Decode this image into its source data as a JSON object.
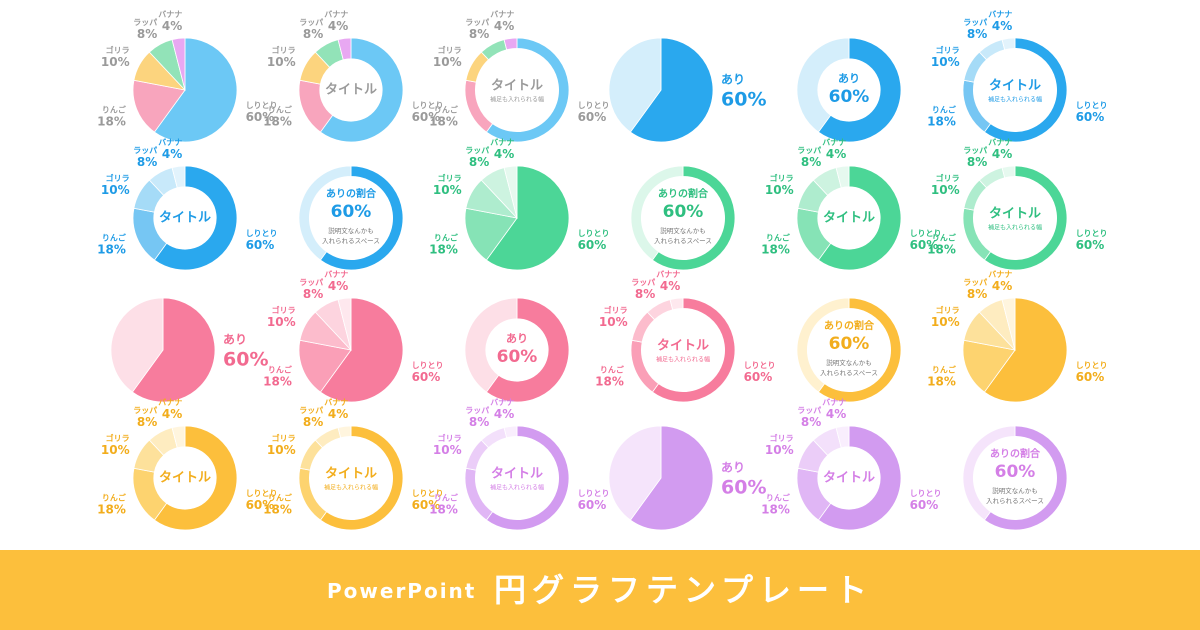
{
  "banner": {
    "latin": "PowerPoint",
    "title": "円グラフテンプレート"
  },
  "chart_data": [
    {
      "type": "pie",
      "categories": [
        "しりとり",
        "りんご",
        "ゴリラ",
        "ラッパ",
        "バナナ"
      ],
      "values": [
        60,
        18,
        10,
        8,
        4
      ],
      "value_labels": [
        "60%",
        "18%",
        "10%",
        "8%",
        "4%"
      ],
      "colors": [
        "#6cc8f5",
        "#f8a5bd",
        "#fcd47e",
        "#92e3b8",
        "#e8a8f2"
      ],
      "label_color": "#9a9a9a"
    },
    {
      "type": "donut",
      "title": "タイトル",
      "categories": [
        "しりとり",
        "りんご",
        "ゴリラ",
        "ラッパ",
        "バナナ"
      ],
      "values": [
        60,
        18,
        10,
        8,
        4
      ],
      "value_labels": [
        "60%",
        "18%",
        "10%",
        "8%",
        "4%"
      ],
      "colors": [
        "#6cc8f5",
        "#f8a5bd",
        "#fcd47e",
        "#92e3b8",
        "#e8a8f2"
      ],
      "label_color": "#9a9a9a"
    },
    {
      "type": "ring",
      "title": "タイトル",
      "subtitle": "補足も入れられる幅",
      "categories": [
        "しりとり",
        "りんご",
        "ゴリラ",
        "ラッパ",
        "バナナ"
      ],
      "values": [
        60,
        18,
        10,
        8,
        4
      ],
      "value_labels": [
        "60%",
        "18%",
        "10%",
        "8%",
        "4%"
      ],
      "colors": [
        "#6cc8f5",
        "#f8a5bd",
        "#fcd47e",
        "#92e3b8",
        "#e8a8f2"
      ],
      "label_color": "#9a9a9a"
    },
    {
      "type": "pie",
      "categories": [
        "あり",
        null
      ],
      "values": [
        60,
        40
      ],
      "value_labels": [
        "60%",
        null
      ],
      "colors": [
        "#2aa8ee",
        "#d4eefb"
      ],
      "label_color": "#1e9be6"
    },
    {
      "type": "donut",
      "categories": [
        "あり",
        null
      ],
      "values": [
        60,
        40
      ],
      "value_labels": [
        "60%",
        null
      ],
      "colors": [
        "#2aa8ee",
        "#d4eefb"
      ],
      "label_color": "#1e9be6"
    },
    {
      "type": "ring",
      "title": "タイトル",
      "subtitle": "補足も入れられる幅",
      "categories": [
        "しりとり",
        "りんご",
        "ゴリラ",
        "ラッパ",
        "バナナ"
      ],
      "values": [
        60,
        18,
        10,
        8,
        4
      ],
      "value_labels": [
        "60%",
        "18%",
        "10%",
        "8%",
        "4%"
      ],
      "colors": [
        "#2aa8ee",
        "#76c6f3",
        "#a5dbf7",
        "#c8e9fa",
        "#e2f3fc"
      ],
      "label_color": "#1e9be6"
    },
    {
      "type": "donut",
      "title": "タイトル",
      "categories": [
        "しりとり",
        "りんご",
        "ゴリラ",
        "ラッパ",
        "バナナ"
      ],
      "values": [
        60,
        18,
        10,
        8,
        4
      ],
      "value_labels": [
        "60%",
        "18%",
        "10%",
        "8%",
        "4%"
      ],
      "colors": [
        "#2aa8ee",
        "#76c6f3",
        "#a5dbf7",
        "#c8e9fa",
        "#e2f3fc"
      ],
      "label_color": "#1e9be6"
    },
    {
      "type": "ring",
      "categories": [
        "ありの割合",
        null
      ],
      "values": [
        60,
        40
      ],
      "value_labels": [
        "60%",
        null
      ],
      "note": [
        "説明文なんかも",
        "入れられるスペース"
      ],
      "colors": [
        "#2aa8ee",
        "#d4eefb"
      ],
      "label_color": "#1e9be6"
    },
    {
      "type": "pie",
      "categories": [
        "しりとり",
        "りんご",
        "ゴリラ",
        "ラッパ",
        "バナナ"
      ],
      "values": [
        60,
        18,
        10,
        8,
        4
      ],
      "value_labels": [
        "60%",
        "18%",
        "10%",
        "8%",
        "4%"
      ],
      "colors": [
        "#4cd697",
        "#86e3b6",
        "#aeecce",
        "#cdf3e0",
        "#e6f9ef"
      ],
      "label_color": "#2fbf80"
    },
    {
      "type": "ring",
      "categories": [
        "ありの割合",
        null
      ],
      "values": [
        60,
        40
      ],
      "value_labels": [
        "60%",
        null
      ],
      "note": [
        "説明文なんかも",
        "入れられるスペース"
      ],
      "colors": [
        "#4cd697",
        "#dcf7ea"
      ],
      "label_color": "#2fbf80"
    },
    {
      "type": "donut",
      "title": "タイトル",
      "categories": [
        "しりとり",
        "りんご",
        "ゴリラ",
        "ラッパ",
        "バナナ"
      ],
      "values": [
        60,
        18,
        10,
        8,
        4
      ],
      "value_labels": [
        "60%",
        "18%",
        "10%",
        "8%",
        "4%"
      ],
      "colors": [
        "#4cd697",
        "#86e3b6",
        "#aeecce",
        "#cdf3e0",
        "#e6f9ef"
      ],
      "label_color": "#2fbf80"
    },
    {
      "type": "ring",
      "title": "タイトル",
      "subtitle": "補足も入れられる幅",
      "categories": [
        "しりとり",
        "りんご",
        "ゴリラ",
        "ラッパ",
        "バナナ"
      ],
      "values": [
        60,
        18,
        10,
        8,
        4
      ],
      "value_labels": [
        "60%",
        "18%",
        "10%",
        "8%",
        "4%"
      ],
      "colors": [
        "#4cd697",
        "#86e3b6",
        "#aeecce",
        "#cdf3e0",
        "#e6f9ef"
      ],
      "label_color": "#2fbf80"
    },
    {
      "type": "pie",
      "categories": [
        "あり",
        null
      ],
      "values": [
        60,
        40
      ],
      "value_labels": [
        "60%",
        null
      ],
      "colors": [
        "#f77c9d",
        "#fddfe7"
      ],
      "label_color": "#f26a90"
    },
    {
      "type": "pie",
      "categories": [
        "しりとり",
        "りんご",
        "ゴリラ",
        "ラッパ",
        "バナナ"
      ],
      "values": [
        60,
        18,
        10,
        8,
        4
      ],
      "value_labels": [
        "60%",
        "18%",
        "10%",
        "8%",
        "4%"
      ],
      "colors": [
        "#f77c9d",
        "#fa9fb7",
        "#fcbccc",
        "#fdd4df",
        "#fee8ee"
      ],
      "label_color": "#f26a90"
    },
    {
      "type": "donut",
      "categories": [
        "あり",
        null
      ],
      "values": [
        60,
        40
      ],
      "value_labels": [
        "60%",
        null
      ],
      "colors": [
        "#f77c9d",
        "#fddfe7"
      ],
      "label_color": "#f26a90"
    },
    {
      "type": "ring",
      "title": "タイトル",
      "subtitle": "補足も入れられる幅",
      "categories": [
        "しりとり",
        "りんご",
        "ゴリラ",
        "ラッパ",
        "バナナ"
      ],
      "values": [
        60,
        18,
        10,
        8,
        4
      ],
      "value_labels": [
        "60%",
        "18%",
        "10%",
        "8%",
        "4%"
      ],
      "colors": [
        "#f77c9d",
        "#fa9fb7",
        "#fcbccc",
        "#fdd4df",
        "#fee8ee"
      ],
      "label_color": "#f26a90"
    },
    {
      "type": "ring",
      "categories": [
        "ありの割合",
        null
      ],
      "values": [
        60,
        40
      ],
      "value_labels": [
        "60%",
        null
      ],
      "note": [
        "説明文なんかも",
        "入れられるスペース"
      ],
      "colors": [
        "#fcbf3c",
        "#fff1cf"
      ],
      "label_color": "#f2ad1c"
    },
    {
      "type": "pie",
      "categories": [
        "しりとり",
        "りんご",
        "ゴリラ",
        "ラッパ",
        "バナナ"
      ],
      "values": [
        60,
        18,
        10,
        8,
        4
      ],
      "value_labels": [
        "60%",
        "18%",
        "10%",
        "8%",
        "4%"
      ],
      "colors": [
        "#fcbf3c",
        "#fdd36f",
        "#fde19b",
        "#feecc0",
        "#fff5de"
      ],
      "label_color": "#f2ad1c"
    },
    {
      "type": "donut",
      "title": "タイトル",
      "categories": [
        "しりとり",
        "りんご",
        "ゴリラ",
        "ラッパ",
        "バナナ"
      ],
      "values": [
        60,
        18,
        10,
        8,
        4
      ],
      "value_labels": [
        "60%",
        "18%",
        "10%",
        "8%",
        "4%"
      ],
      "colors": [
        "#fcbf3c",
        "#fdd36f",
        "#fde19b",
        "#feecc0",
        "#fff5de"
      ],
      "label_color": "#f2ad1c"
    },
    {
      "type": "ring",
      "title": "タイトル",
      "subtitle": "補足も入れられる幅",
      "categories": [
        "しりとり",
        "りんご",
        "ゴリラ",
        "ラッパ",
        "バナナ"
      ],
      "values": [
        60,
        18,
        10,
        8,
        4
      ],
      "value_labels": [
        "60%",
        "18%",
        "10%",
        "8%",
        "4%"
      ],
      "colors": [
        "#fcbf3c",
        "#fdd36f",
        "#fde19b",
        "#feecc0",
        "#fff5de"
      ],
      "label_color": "#f2ad1c"
    },
    {
      "type": "ring",
      "title": "タイトル",
      "subtitle": "補足も入れられる幅",
      "categories": [
        "しりとり",
        "りんご",
        "ゴリラ",
        "ラッパ",
        "バナナ"
      ],
      "values": [
        60,
        18,
        10,
        8,
        4
      ],
      "value_labels": [
        "60%",
        "18%",
        "10%",
        "8%",
        "4%"
      ],
      "colors": [
        "#d29bf0",
        "#e0b6f5",
        "#ebcdf8",
        "#f3e0fb",
        "#f9eefd"
      ],
      "label_color": "#d47fe6"
    },
    {
      "type": "pie",
      "categories": [
        "あり",
        null
      ],
      "values": [
        60,
        40
      ],
      "value_labels": [
        "60%",
        null
      ],
      "colors": [
        "#d29bf0",
        "#f5e4fb"
      ],
      "label_color": "#d47fe6"
    },
    {
      "type": "donut",
      "title": "タイトル",
      "categories": [
        "しりとり",
        "りんご",
        "ゴリラ",
        "ラッパ",
        "バナナ"
      ],
      "values": [
        60,
        18,
        10,
        8,
        4
      ],
      "value_labels": [
        "60%",
        "18%",
        "10%",
        "8%",
        "4%"
      ],
      "colors": [
        "#d29bf0",
        "#e0b6f5",
        "#ebcdf8",
        "#f3e0fb",
        "#f9eefd"
      ],
      "label_color": "#d47fe6"
    },
    {
      "type": "ring",
      "categories": [
        "ありの割合",
        null
      ],
      "values": [
        60,
        40
      ],
      "value_labels": [
        "60%",
        null
      ],
      "note": [
        "説明文なんかも",
        "入れられるスペース"
      ],
      "colors": [
        "#d29bf0",
        "#f5e4fb"
      ],
      "label_color": "#d47fe6"
    }
  ]
}
